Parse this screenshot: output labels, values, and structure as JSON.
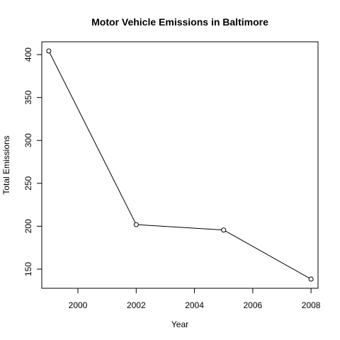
{
  "chart_data": {
    "type": "line",
    "title": "Motor Vehicle Emissions in Baltimore",
    "xlabel": "Year",
    "ylabel": "Total Emissions",
    "x": [
      1999,
      2002,
      2005,
      2008
    ],
    "y": [
      404.2,
      201.9,
      195.6,
      138.4
    ],
    "xlim": [
      1998.76,
      2008.24
    ],
    "ylim": [
      127.7,
      414.9
    ],
    "xticks": [
      2000,
      2002,
      2004,
      2006,
      2008
    ],
    "yticks": [
      150,
      200,
      250,
      300,
      350,
      400
    ],
    "xtick_labels": [
      "2000",
      "2002",
      "2004",
      "2006",
      "2008"
    ],
    "ytick_labels": [
      "150",
      "200",
      "250",
      "300",
      "350",
      "400"
    ],
    "grid": false,
    "legend": "none",
    "marker": "open-circle",
    "line_color": "#000000"
  }
}
